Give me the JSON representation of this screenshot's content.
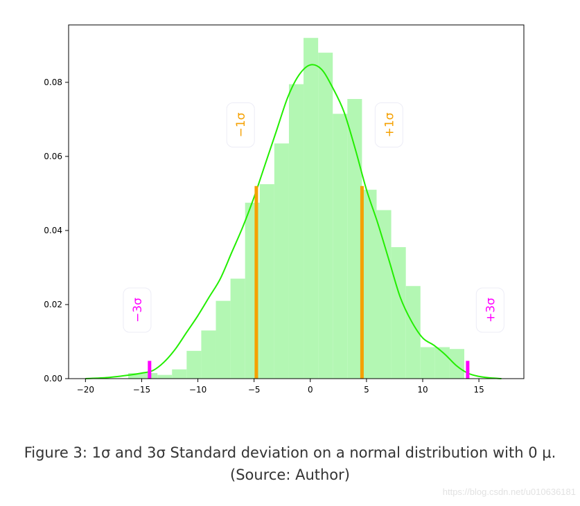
{
  "chart_data": {
    "type": "bar",
    "subtype": "histogram-with-kde",
    "title": "",
    "xlabel": "",
    "ylabel": "",
    "xlim": [
      -21.5,
      19
    ],
    "ylim": [
      0,
      0.0955
    ],
    "xticks": [
      -20,
      -15,
      -10,
      -5,
      0,
      5,
      10,
      15
    ],
    "xtick_labels": [
      "−20",
      "−15",
      "−10",
      "−5",
      "0",
      "5",
      "10",
      "15"
    ],
    "yticks": [
      0.0,
      0.02,
      0.04,
      0.06,
      0.08
    ],
    "ytick_labels": [
      "0.00",
      "0.02",
      "0.04",
      "0.06",
      "0.08"
    ],
    "grid": false,
    "bin_width": 1.3,
    "histogram": {
      "bin_left_edges": [
        -16.2,
        -14.9,
        -13.6,
        -12.3,
        -11.0,
        -9.7,
        -8.4,
        -7.1,
        -5.8,
        -4.5,
        -3.2,
        -1.9,
        -0.6,
        0.7,
        2.0,
        3.3,
        4.6,
        5.9,
        7.2,
        8.5,
        9.8,
        11.1,
        12.4
      ],
      "values": [
        0.0015,
        0.0015,
        0.001,
        0.0025,
        0.0075,
        0.013,
        0.021,
        0.027,
        0.0475,
        0.0525,
        0.0635,
        0.0795,
        0.092,
        0.088,
        0.0715,
        0.0755,
        0.051,
        0.0455,
        0.0355,
        0.025,
        0.0085,
        0.0085,
        0.008
      ],
      "color": "#b3f7b3"
    },
    "kde": {
      "x": [
        -20,
        -18,
        -16,
        -15,
        -14,
        -13,
        -12,
        -11,
        -10,
        -9,
        -8,
        -7,
        -6,
        -5,
        -4,
        -3,
        -2,
        -1,
        0,
        1,
        2,
        3,
        4,
        5,
        6,
        7,
        8,
        9,
        10,
        11,
        12,
        13,
        14,
        15,
        16,
        17
      ],
      "y": [
        0.0,
        0.0003,
        0.001,
        0.0015,
        0.0022,
        0.0045,
        0.008,
        0.0125,
        0.017,
        0.022,
        0.027,
        0.034,
        0.041,
        0.049,
        0.058,
        0.067,
        0.076,
        0.082,
        0.0847,
        0.0835,
        0.0785,
        0.072,
        0.062,
        0.051,
        0.042,
        0.032,
        0.022,
        0.0155,
        0.011,
        0.009,
        0.0065,
        0.0035,
        0.0015,
        0.0006,
        0.0002,
        0.0
      ],
      "color": "#22ee00"
    },
    "markers": [
      {
        "x": -4.8,
        "height": 0.052,
        "color": "#f5a000",
        "label": "−1σ"
      },
      {
        "x": 4.6,
        "height": 0.052,
        "color": "#f5a000",
        "label": "+1σ"
      },
      {
        "x": -14.3,
        "height": 0.0048,
        "color": "#ff00ff",
        "label": "−3σ"
      },
      {
        "x": 14.0,
        "height": 0.0048,
        "color": "#ff00ff",
        "label": "+3σ"
      }
    ],
    "annotations": [
      {
        "text": "−1σ",
        "x": -6.2,
        "y": 0.0685,
        "color": "#f5a000",
        "rotation": -90
      },
      {
        "text": "+1σ",
        "x": 7.0,
        "y": 0.0685,
        "color": "#f5a000",
        "rotation": -90
      },
      {
        "text": "−3σ",
        "x": -15.4,
        "y": 0.0185,
        "color": "#ff00ff",
        "rotation": -90
      },
      {
        "text": "+3σ",
        "x": 16.0,
        "y": 0.0185,
        "color": "#ff00ff",
        "rotation": -90
      }
    ]
  },
  "caption": {
    "line1": "Figure 3: 1σ and 3σ Standard deviation on a normal distribution with 0 μ.",
    "line2": "(Source: Author)"
  },
  "watermark": "https://blog.csdn.net/u010636181"
}
